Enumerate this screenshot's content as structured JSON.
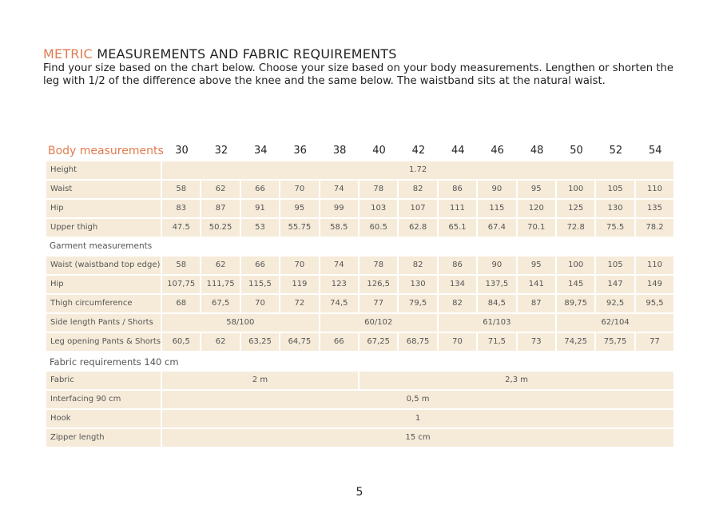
{
  "header": {
    "title_highlight": "METRIC",
    "title": "MEASUREMENTS AND FABRIC REQUIREMENTS",
    "intro": "Find your size based on the chart below. Choose your size based on your body measurements. Lengthen or shorten the leg with 1/2 of the difference above the knee and the same below. The waistband sits at the natural waist."
  },
  "table": {
    "heading": "Body measurements",
    "sizes": [
      "30",
      "32",
      "34",
      "36",
      "38",
      "40",
      "42",
      "44",
      "46",
      "48",
      "50",
      "52",
      "54"
    ],
    "body_rows": [
      {
        "label": "Height",
        "cells": [
          "1.72"
        ]
      },
      {
        "label": "Waist",
        "cells": [
          "58",
          "62",
          "66",
          "70",
          "74",
          "78",
          "82",
          "86",
          "90",
          "95",
          "100",
          "105",
          "110"
        ]
      },
      {
        "label": "Hip",
        "cells": [
          "83",
          "87",
          "91",
          "95",
          "99",
          "103",
          "107",
          "111",
          "115",
          "120",
          "125",
          "130",
          "135"
        ]
      },
      {
        "label": "Upper thigh",
        "cells": [
          "47.5",
          "50.25",
          "53",
          "55.75",
          "58.5",
          "60.5",
          "62.8",
          "65.1",
          "67.4",
          "70.1",
          "72.8",
          "75.5",
          "78.2"
        ]
      }
    ],
    "garment_heading": "Garment measurements",
    "garment_rows": [
      {
        "label": "Waist (waistband top edge)",
        "cells": [
          "58",
          "62",
          "66",
          "70",
          "74",
          "78",
          "82",
          "86",
          "90",
          "95",
          "100",
          "105",
          "110"
        ]
      },
      {
        "label": "Hip",
        "cells": [
          "107,75",
          "111,75",
          "115,5",
          "119",
          "123",
          "126,5",
          "130",
          "134",
          "137,5",
          "141",
          "145",
          "147",
          "149"
        ]
      },
      {
        "label": "Thigh circumference",
        "cells": [
          "68",
          "67,5",
          "70",
          "72",
          "74,5",
          "77",
          "79,5",
          "82",
          "84,5",
          "87",
          "89,75",
          "92,5",
          "95,5"
        ]
      },
      {
        "label": "Side length Pants / Shorts",
        "cells": [
          "58/100",
          "60/102",
          "61/103",
          "62/104"
        ]
      },
      {
        "label": "Leg opening Pants & Shorts",
        "cells": [
          "60,5",
          "62",
          "63,25",
          "64,75",
          "66",
          "67,25",
          "68,75",
          "70",
          "71,5",
          "73",
          "74,25",
          "75,75",
          "77"
        ]
      }
    ],
    "fabric_heading": "Fabric requirements 140 cm",
    "fabric_rows": [
      {
        "label": "Fabric",
        "cells": [
          "2 m",
          "2,3 m"
        ]
      },
      {
        "label": "Interfacing 90 cm",
        "cells": [
          "0,5 m"
        ]
      },
      {
        "label": "Hook",
        "cells": [
          "1"
        ]
      },
      {
        "label": "Zipper length",
        "cells": [
          "15 cm"
        ]
      }
    ]
  },
  "page_number": "5"
}
